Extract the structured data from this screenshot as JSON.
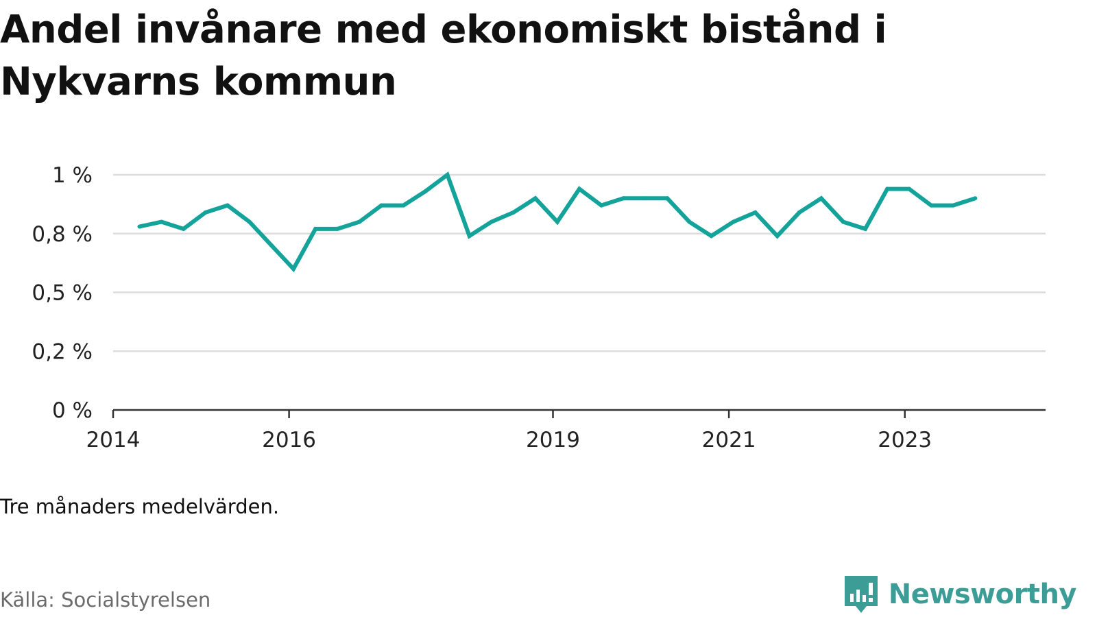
{
  "title": "Andel invånare med ekonomiskt bistånd i Nykvarns kommun",
  "note": "Tre månaders medelvärden.",
  "source": "Källa: Socialstyrelsen",
  "brand": {
    "name": "Newsworthy",
    "icon": "newsworthy-logo-icon",
    "color": "#3c9d97"
  },
  "chart_data": {
    "type": "line",
    "title": "Andel invånare med ekonomiskt bistånd i Nykvarns kommun",
    "xlabel": "",
    "ylabel": "",
    "xlim": [
      2014.0,
      2024.6
    ],
    "ylim": [
      0,
      1
    ],
    "y_ticks": [
      0,
      0.25,
      0.5,
      0.75,
      1
    ],
    "y_tick_labels": [
      "0 %",
      "0,2 %",
      "0,5 %",
      "0,8 %",
      "1 %"
    ],
    "x_ticks": [
      2014,
      2016,
      2019,
      2021,
      2023
    ],
    "x_tick_labels": [
      "2014",
      "2016",
      "2019",
      "2021",
      "2023"
    ],
    "grid": true,
    "legend": "none",
    "series": [
      {
        "color": "#14a39a",
        "x": [
          2014.3,
          2014.55,
          2014.8,
          2015.05,
          2015.3,
          2015.55,
          2015.8,
          2016.05,
          2016.3,
          2016.55,
          2016.8,
          2017.05,
          2017.3,
          2017.55,
          2017.8,
          2018.05,
          2018.3,
          2018.55,
          2018.8,
          2019.05,
          2019.3,
          2019.55,
          2019.8,
          2020.05,
          2020.3,
          2020.55,
          2020.8,
          2021.05,
          2021.3,
          2021.55,
          2021.8,
          2022.05,
          2022.3,
          2022.55,
          2022.8,
          2023.05,
          2023.3,
          2023.55,
          2023.8
        ],
        "values": [
          0.78,
          0.8,
          0.77,
          0.84,
          0.87,
          0.8,
          0.7,
          0.6,
          0.77,
          0.77,
          0.8,
          0.87,
          0.87,
          0.93,
          1.0,
          0.74,
          0.8,
          0.84,
          0.9,
          0.8,
          0.94,
          0.87,
          0.9,
          0.9,
          0.9,
          0.8,
          0.74,
          0.8,
          0.84,
          0.74,
          0.84,
          0.9,
          0.8,
          0.77,
          0.94,
          0.94,
          0.87,
          0.87,
          0.9
        ]
      }
    ]
  }
}
